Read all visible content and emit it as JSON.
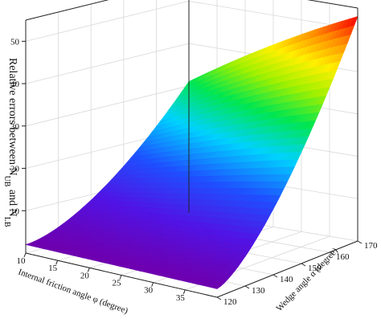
{
  "chart_data": {
    "type": "surface",
    "title": "",
    "xlabel": "Internal friction angle φ (degree)",
    "ylabel": "Wedge angle α (degree)",
    "zlabel": "Relative errors between N",
    "zlabel_sub1": "UB",
    "zlabel_mid": " and N",
    "zlabel_sub2": "LB",
    "x_range": [
      10,
      40
    ],
    "y_range": [
      120,
      170
    ],
    "z_range": [
      0,
      55
    ],
    "x_ticks": [
      "10",
      "15",
      "20",
      "25",
      "30",
      "35"
    ],
    "y_ticks": [
      "120",
      "130",
      "140",
      "150",
      "160",
      "170"
    ],
    "z_ticks": [
      "10",
      "20",
      "30",
      "40",
      "50"
    ],
    "grid": true,
    "colormap": "rainbow",
    "corner_values": [
      {
        "phi": 10,
        "alpha": 120,
        "z": 2
      },
      {
        "phi": 40,
        "alpha": 120,
        "z": 2
      },
      {
        "phi": 10,
        "alpha": 170,
        "z": 31
      },
      {
        "phi": 40,
        "alpha": 170,
        "z": 53
      }
    ]
  }
}
